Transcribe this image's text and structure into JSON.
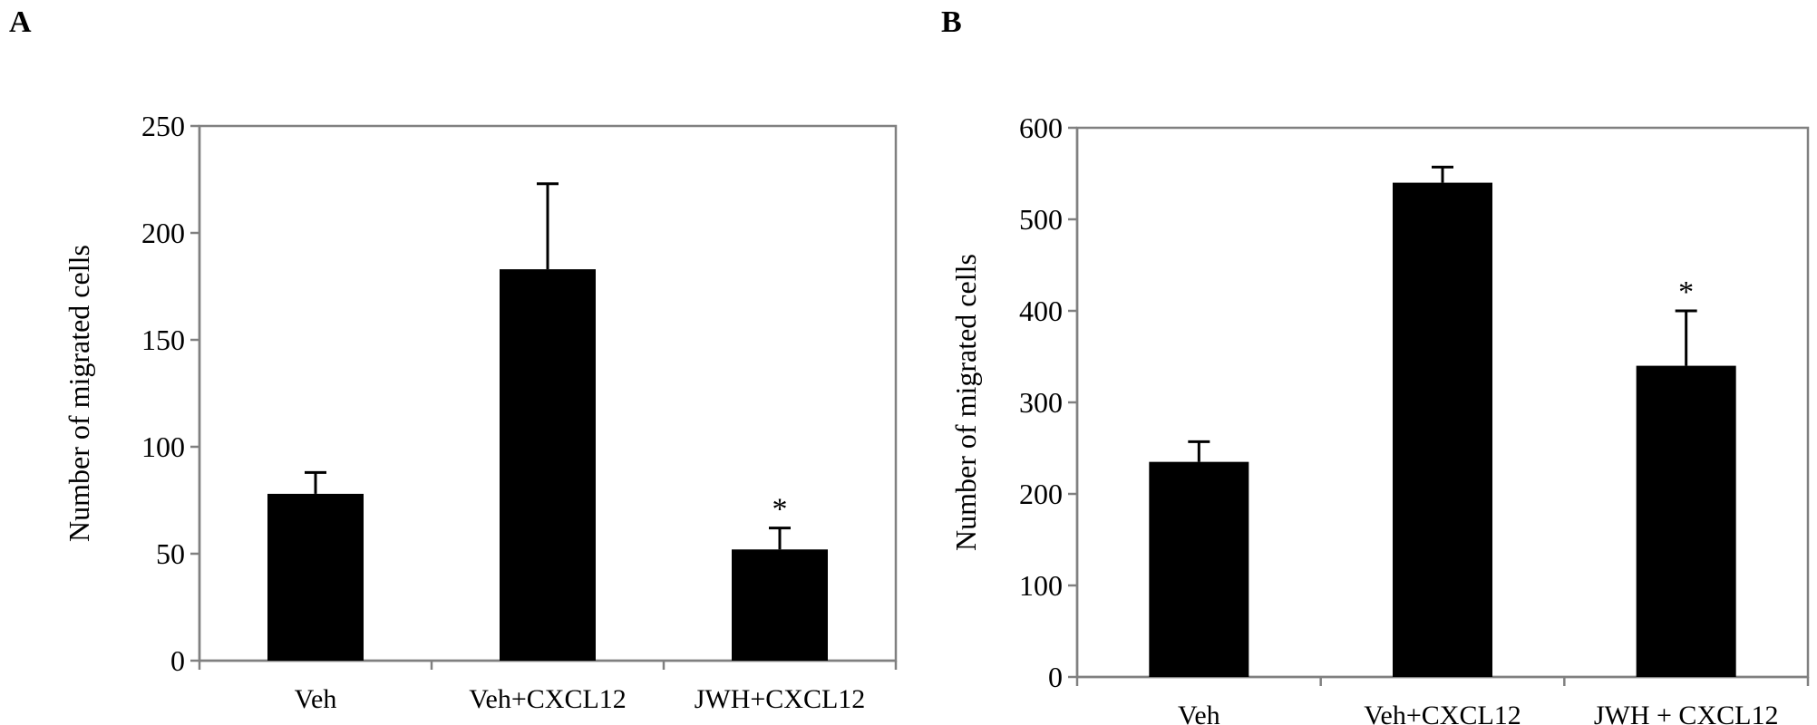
{
  "panels": {
    "a_label": "A",
    "b_label": "B"
  },
  "chart_data": [
    {
      "type": "bar",
      "panel": "A",
      "title": "",
      "xlabel": "",
      "ylabel": "Number of migrated cells",
      "categories": [
        "Veh",
        "Veh+CXCL12",
        "JWH+CXCL12"
      ],
      "values": [
        78,
        183,
        52
      ],
      "error_plus": [
        10,
        40,
        10
      ],
      "annotations": [
        "",
        "",
        "*"
      ],
      "ylim": [
        0,
        250
      ],
      "yticks": [
        0,
        50,
        100,
        150,
        200,
        250
      ],
      "grid": false,
      "legend": "none",
      "bar_color": "#000000"
    },
    {
      "type": "bar",
      "panel": "B",
      "title": "",
      "xlabel": "",
      "ylabel": "Number of migrated cells",
      "categories": [
        "Veh",
        "Veh+CXCL12",
        "JWH + CXCL12"
      ],
      "values": [
        235,
        540,
        340
      ],
      "error_plus": [
        22,
        17,
        60
      ],
      "annotations": [
        "",
        "",
        "*"
      ],
      "ylim": [
        0,
        600
      ],
      "yticks": [
        0,
        100,
        200,
        300,
        400,
        500,
        600
      ],
      "grid": false,
      "legend": "none",
      "bar_color": "#000000"
    }
  ]
}
